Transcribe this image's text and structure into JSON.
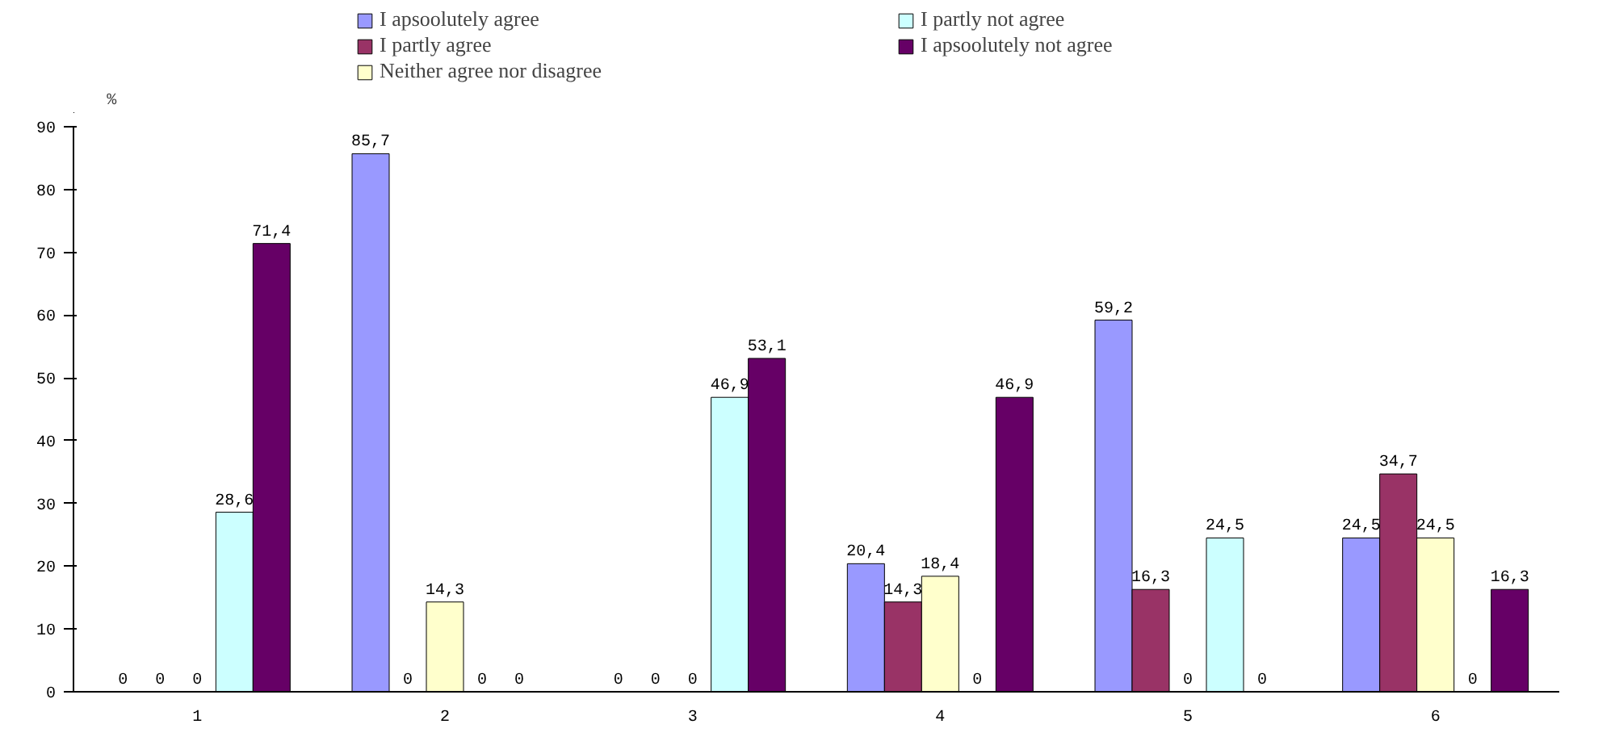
{
  "chart_data": {
    "type": "bar",
    "ylabel": "%",
    "categories": [
      "1",
      "2",
      "3",
      "4",
      "5",
      "6"
    ],
    "series": [
      {
        "name": "I apsoolutely agree",
        "color": "#9999ff",
        "values": [
          0,
          85.7,
          0,
          20.4,
          59.2,
          24.5
        ],
        "value_labels": [
          "0",
          "85,7",
          "0",
          "20,4",
          "59,2",
          "24,5"
        ]
      },
      {
        "name": "I partly agree",
        "color": "#993366",
        "values": [
          0,
          0,
          0,
          14.3,
          16.3,
          34.7
        ],
        "value_labels": [
          "0",
          "0",
          "0",
          "14,3",
          "16,3",
          "34,7"
        ]
      },
      {
        "name": "Neither agree nor disagree",
        "color": "#ffffcc",
        "values": [
          0,
          14.3,
          0,
          18.4,
          0,
          24.5
        ],
        "value_labels": [
          "0",
          "14,3",
          "0",
          "18,4",
          "0",
          "24,5"
        ]
      },
      {
        "name": "I partly not agree",
        "color": "#ccffff",
        "values": [
          28.6,
          0,
          46.9,
          0,
          24.5,
          0
        ],
        "value_labels": [
          "28,6",
          "0",
          "46,9",
          "0",
          "24,5",
          "0"
        ]
      },
      {
        "name": "I apsoolutely not agree",
        "color": "#660066",
        "values": [
          71.4,
          0,
          53.1,
          46.9,
          0,
          16.3
        ],
        "value_labels": [
          "71,4",
          "0",
          "53,1",
          "46,9",
          "0",
          "16,3"
        ]
      }
    ],
    "ylim": [
      0,
      90
    ],
    "yticks": [
      0,
      10,
      20,
      30,
      40,
      50,
      60,
      70,
      80,
      90
    ],
    "grid": false,
    "legend": "top"
  }
}
